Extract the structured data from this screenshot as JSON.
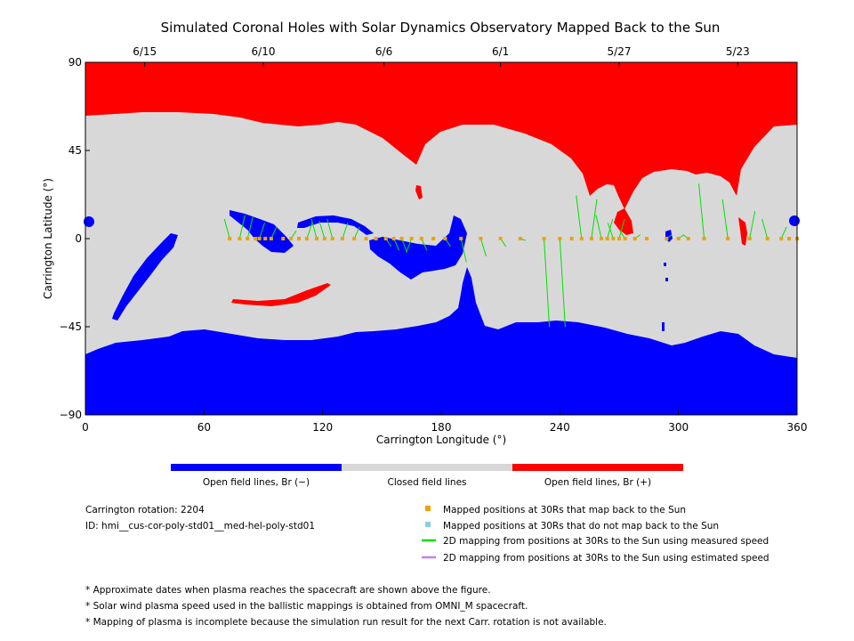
{
  "chart_data": {
    "type": "heatmap",
    "title": "Simulated Coronal Holes with Solar Dynamics Observatory Mapped Back to the Sun",
    "xlabel": "Carrington Longitude (°)",
    "ylabel": "Carrington Latitude (°)",
    "xlim": [
      0,
      360
    ],
    "ylim": [
      -90,
      90
    ],
    "x_ticks": [
      "0",
      "60",
      "120",
      "180",
      "240",
      "300",
      "360"
    ],
    "y_ticks": [
      "90",
      "45",
      "0",
      "−45",
      "−90"
    ],
    "top_axis": [
      {
        "date": "6/15",
        "lon": 30
      },
      {
        "date": "6/10",
        "lon": 90
      },
      {
        "date": "6/6",
        "lon": 151
      },
      {
        "date": "6/1",
        "lon": 210
      },
      {
        "date": "5/27",
        "lon": 270
      },
      {
        "date": "5/23",
        "lon": 330
      }
    ],
    "colorbar": {
      "colors": [
        "#0000ff",
        "#d8d8d8",
        "#ff0000"
      ],
      "labels": [
        "Open field lines, Br (−)",
        "Closed field lines",
        "Open field lines, Br (+)"
      ]
    },
    "mapped_longitudes": [
      73,
      78,
      82,
      86,
      88,
      91,
      94,
      100,
      104,
      108,
      112,
      117,
      121,
      125,
      130,
      136,
      142,
      147,
      152,
      156,
      160,
      165,
      170,
      176,
      182,
      190,
      200,
      210,
      220,
      232,
      240,
      246,
      251,
      256,
      261,
      264,
      267,
      270,
      273,
      278,
      284,
      294,
      300,
      305,
      313,
      325,
      336,
      345,
      352,
      356,
      360
    ],
    "mapping_lines": [
      {
        "x": 73,
        "y": 10
      },
      {
        "x": 78,
        "y": 12
      },
      {
        "x": 82,
        "y": 11
      },
      {
        "x": 88,
        "y": 8
      },
      {
        "x": 94,
        "y": 6
      },
      {
        "x": 104,
        "y": 4
      },
      {
        "x": 112,
        "y": 8
      },
      {
        "x": 117,
        "y": 10
      },
      {
        "x": 121,
        "y": 9
      },
      {
        "x": 125,
        "y": 10
      },
      {
        "x": 130,
        "y": 8
      },
      {
        "x": 136,
        "y": 6
      },
      {
        "x": 152,
        "y": -4
      },
      {
        "x": 156,
        "y": -6
      },
      {
        "x": 160,
        "y": -7
      },
      {
        "x": 165,
        "y": -7
      },
      {
        "x": 170,
        "y": -6
      },
      {
        "x": 182,
        "y": -4
      },
      {
        "x": 190,
        "y": -12
      },
      {
        "x": 200,
        "y": -9
      },
      {
        "x": 210,
        "y": -4
      },
      {
        "x": 220,
        "y": -1
      },
      {
        "x": 232,
        "y": -45
      },
      {
        "x": 240,
        "y": -45
      },
      {
        "x": 251,
        "y": 22
      },
      {
        "x": 256,
        "y": 20
      },
      {
        "x": 261,
        "y": 12
      },
      {
        "x": 264,
        "y": 10
      },
      {
        "x": 267,
        "y": 8
      },
      {
        "x": 270,
        "y": 10
      },
      {
        "x": 273,
        "y": 4
      },
      {
        "x": 278,
        "y": 2
      },
      {
        "x": 294,
        "y": 2
      },
      {
        "x": 300,
        "y": 2
      },
      {
        "x": 305,
        "y": 2
      },
      {
        "x": 313,
        "y": 28
      },
      {
        "x": 325,
        "y": 20
      },
      {
        "x": 336,
        "y": 14
      },
      {
        "x": 345,
        "y": 10
      },
      {
        "x": 352,
        "y": 6
      }
    ],
    "legend": [
      {
        "marker": "square",
        "color": "#f0a000",
        "label": "Mapped positions at 30Rs that map back to the Sun"
      },
      {
        "marker": "square",
        "color": "#87ceeb",
        "label": "Mapped positions at 30Rs that do not map back to the Sun"
      },
      {
        "marker": "line",
        "color": "#00e000",
        "label": "2D mapping from positions at 30Rs to the Sun using measured speed"
      },
      {
        "marker": "line",
        "color": "#c080f0",
        "label": "2D mapping from positions at 30Rs to the Sun using estimated speed"
      }
    ]
  },
  "info": {
    "carrington_rotation": "Carrington rotation: 2204",
    "model_id": "ID: hmi__cus-cor-poly-std01__med-hel-poly-std01"
  },
  "notes": [
    "* Approximate dates when plasma reaches the spacecraft are shown above the figure.",
    "* Solar wind plasma speed used in the ballistic mappings is obtained from OMNI_M spacecraft.",
    "* Mapping of plasma is incomplete because the simulation run result for the next Carr. rotation is not available."
  ]
}
